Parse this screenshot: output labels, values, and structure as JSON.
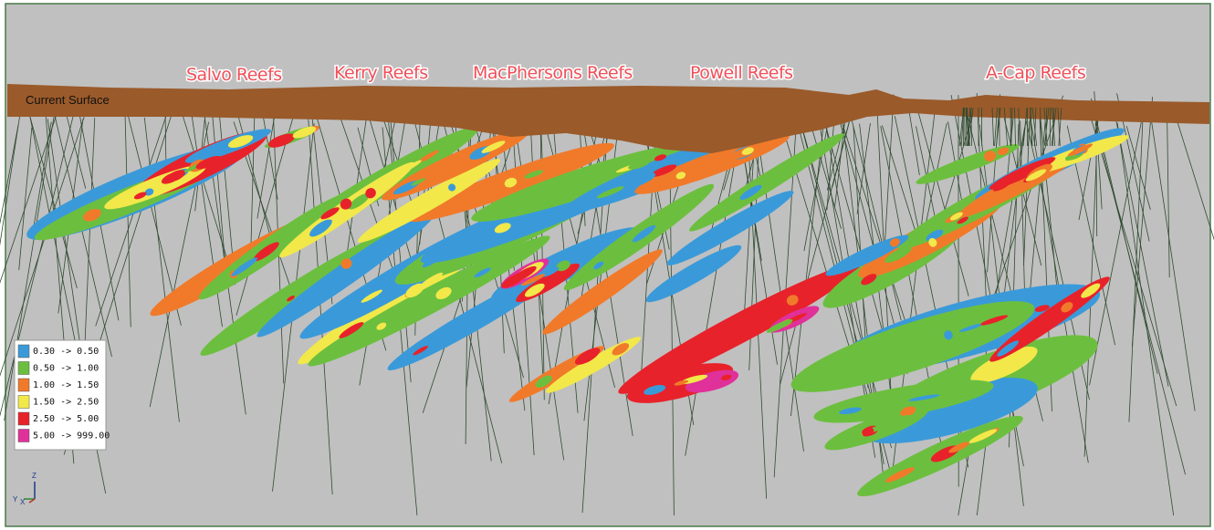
{
  "reef_labels": [
    "Salvo Reefs",
    "Kerry Reefs",
    "MacPhersons Reefs",
    "Powell Reefs",
    "A-Cap Reefs"
  ],
  "surface_label": "Current Surface",
  "legend": [
    {
      "label": "0.30 -> 0.50",
      "color": "#3a9ad9"
    },
    {
      "label": "0.50 -> 1.00",
      "color": "#6cbf3e"
    },
    {
      "label": "1.00 -> 1.50",
      "color": "#f07a2a"
    },
    {
      "label": "1.50 -> 2.50",
      "color": "#f2e84a"
    },
    {
      "label": "2.50 -> 5.00",
      "color": "#e8222a"
    },
    {
      "label": "5.00 -> 999.00",
      "color": "#e0309a"
    }
  ],
  "axes": {
    "z": "Z",
    "y": "Y",
    "x": "X"
  }
}
